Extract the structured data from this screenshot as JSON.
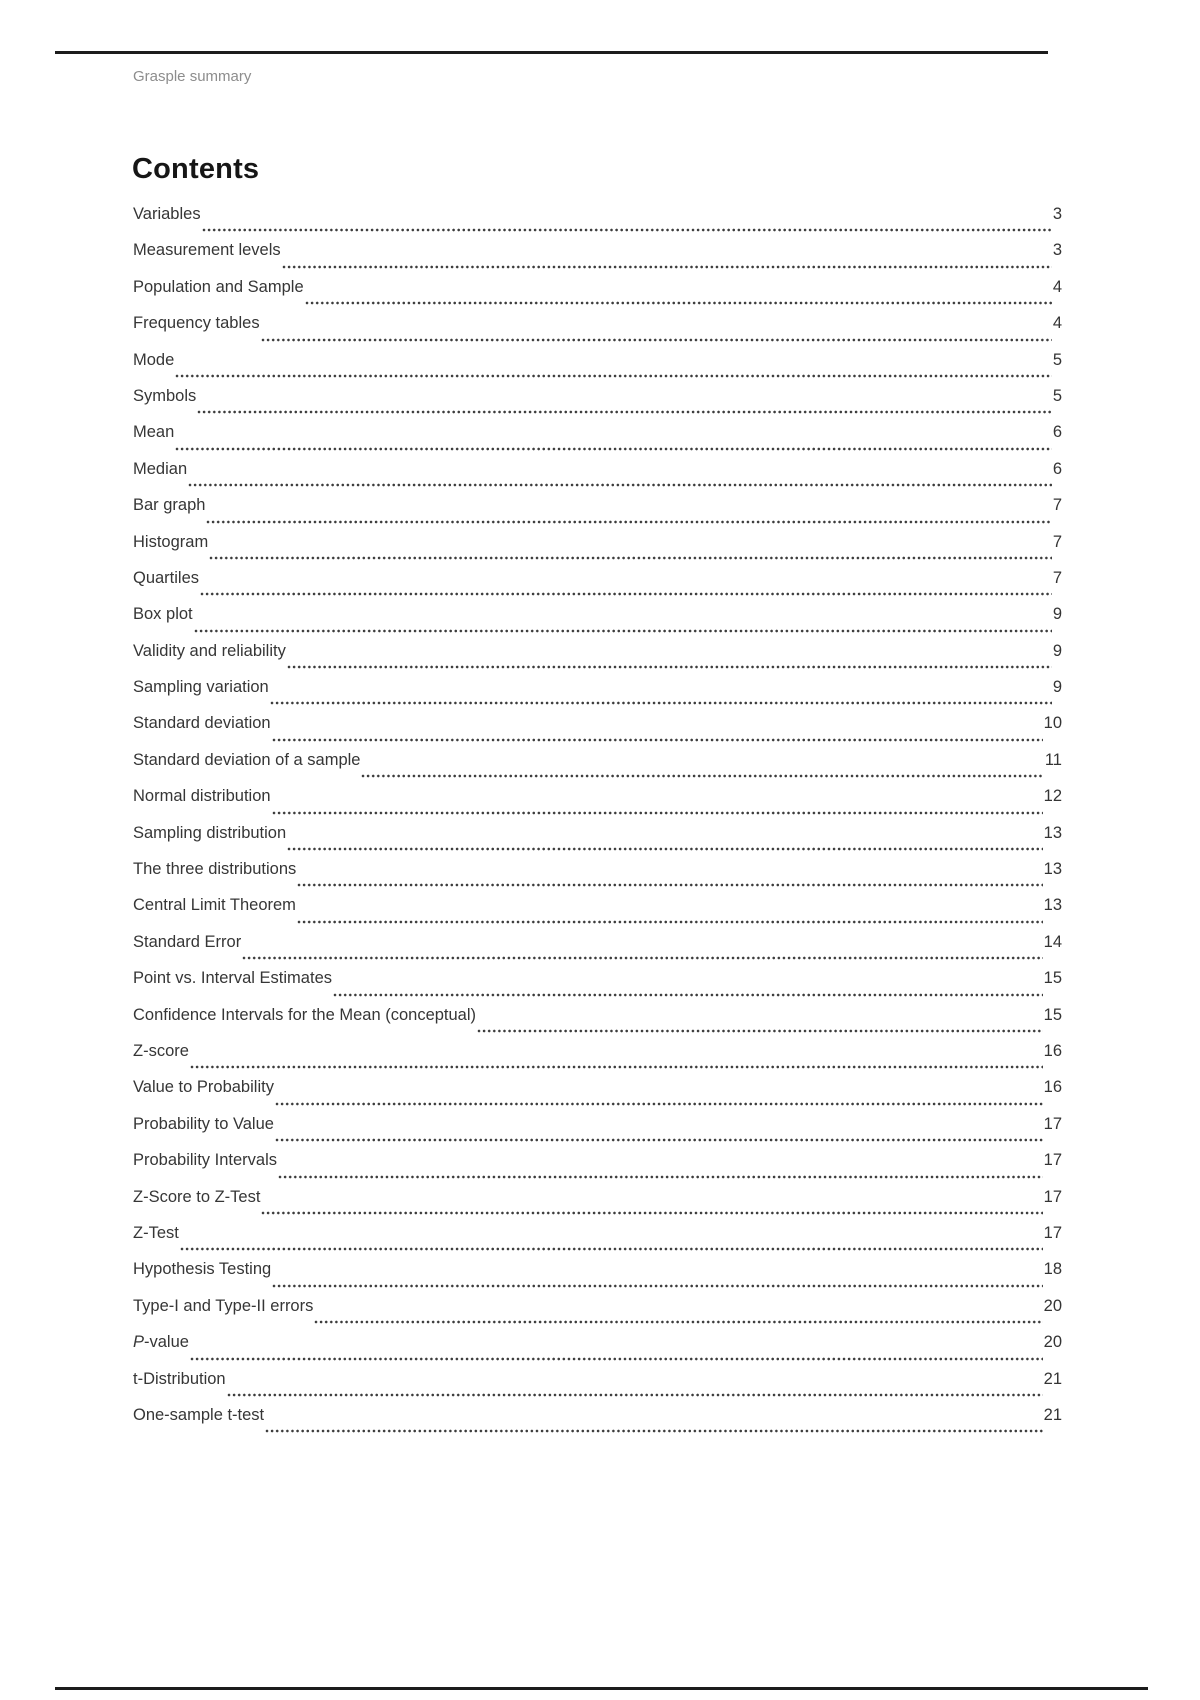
{
  "page": {
    "header": "Grasple summary",
    "title": "Contents"
  },
  "colors": {
    "rule": "#1c1c1c",
    "header_text": "#8d8d8d",
    "body_text": "#363636",
    "background": "#ffffff"
  },
  "toc": {
    "entries": [
      {
        "title": "Variables",
        "page": "3"
      },
      {
        "title": "Measurement levels",
        "page": "3"
      },
      {
        "title": "Population and Sample",
        "page": "4"
      },
      {
        "title": "Frequency tables",
        "page": "4"
      },
      {
        "title": "Mode",
        "page": "5"
      },
      {
        "title": "Symbols",
        "page": "5"
      },
      {
        "title": "Mean",
        "page": "6"
      },
      {
        "title": "Median",
        "page": "6"
      },
      {
        "title": "Bar graph",
        "page": "7"
      },
      {
        "title": "Histogram",
        "page": "7"
      },
      {
        "title": "Quartiles",
        "page": "7"
      },
      {
        "title": "Box plot",
        "page": "9"
      },
      {
        "title": "Validity and reliability",
        "page": "9"
      },
      {
        "title": "Sampling variation",
        "page": "9"
      },
      {
        "title": "Standard deviation",
        "page": "10"
      },
      {
        "title": "Standard deviation of a sample",
        "page": "11"
      },
      {
        "title": "Normal distribution",
        "page": "12"
      },
      {
        "title": "Sampling distribution",
        "page": "13"
      },
      {
        "title": "The three distributions",
        "page": "13"
      },
      {
        "title": "Central Limit Theorem",
        "page": "13"
      },
      {
        "title": "Standard Error",
        "page": "14"
      },
      {
        "title": "Point vs. Interval Estimates",
        "page": "15"
      },
      {
        "title": "Confidence Intervals for the Mean (conceptual)",
        "page": "15"
      },
      {
        "title": "Z-score",
        "page": "16"
      },
      {
        "title": "Value to Probability",
        "page": "16"
      },
      {
        "title": "Probability to Value",
        "page": "17"
      },
      {
        "title": "Probability Intervals",
        "page": "17"
      },
      {
        "title": "Z-Score to Z-Test",
        "page": "17"
      },
      {
        "title": "Z-Test",
        "page": "17"
      },
      {
        "title": "Hypothesis Testing",
        "page": "18"
      },
      {
        "title": "Type-I and Type-II errors",
        "page": "20"
      },
      {
        "title": "P-value",
        "page": "20",
        "lead_italic": true
      },
      {
        "title": "t-Distribution",
        "page": "21"
      },
      {
        "title": "One-sample t-test",
        "page": "21"
      }
    ]
  }
}
